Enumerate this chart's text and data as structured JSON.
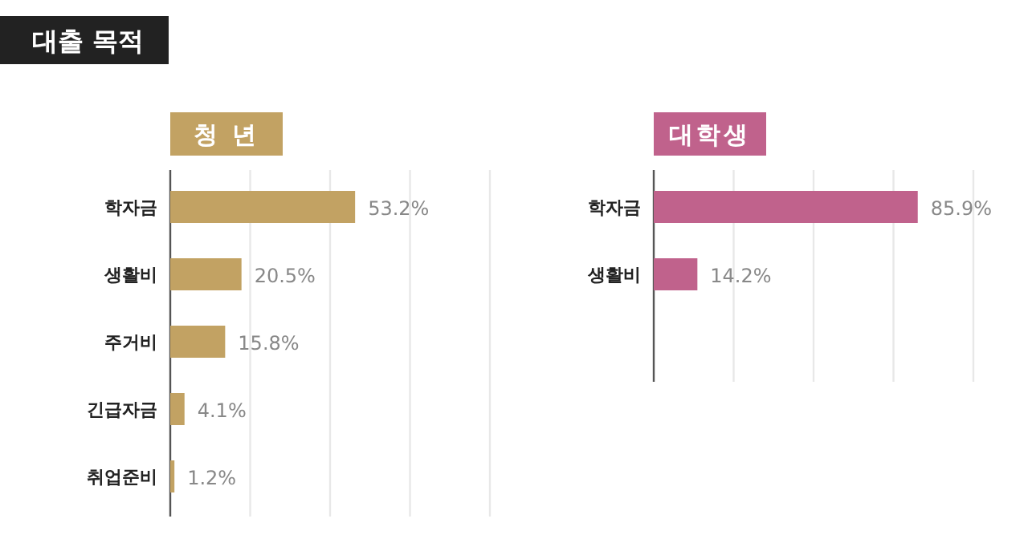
{
  "chart_data": [
    {
      "type": "bar",
      "orientation": "horizontal",
      "title": "청 년",
      "annotations": [
        "대출 목적"
      ],
      "categories": [
        "학자금",
        "생활비",
        "주거비",
        "긴급자금",
        "취업준비"
      ],
      "values": [
        53.2,
        20.5,
        15.8,
        4.1,
        1.2
      ],
      "value_labels": [
        "53.2%",
        "20.5%",
        "15.8%",
        "4.1%",
        "1.2%"
      ],
      "color": "#c2a263",
      "xlim": [
        0,
        92
      ],
      "xticks": [
        {
          "value": 23,
          "label": null
        },
        {
          "value": 46,
          "label": null
        },
        {
          "value": 69,
          "label": null
        },
        {
          "value": 92,
          "label": null
        }
      ],
      "grid": "x"
    },
    {
      "type": "bar",
      "orientation": "horizontal",
      "title": "대학생",
      "categories": [
        "학자금",
        "생활비"
      ],
      "values": [
        85.9,
        14.2
      ],
      "value_labels": [
        "85.9%",
        "14.2%"
      ],
      "color": "#c0628c",
      "xlim": [
        0,
        104
      ],
      "xticks": [
        {
          "value": 26,
          "label": null
        },
        {
          "value": 52,
          "label": null
        },
        {
          "value": 78,
          "label": null
        },
        {
          "value": 104,
          "label": null
        }
      ],
      "grid": "x"
    }
  ]
}
